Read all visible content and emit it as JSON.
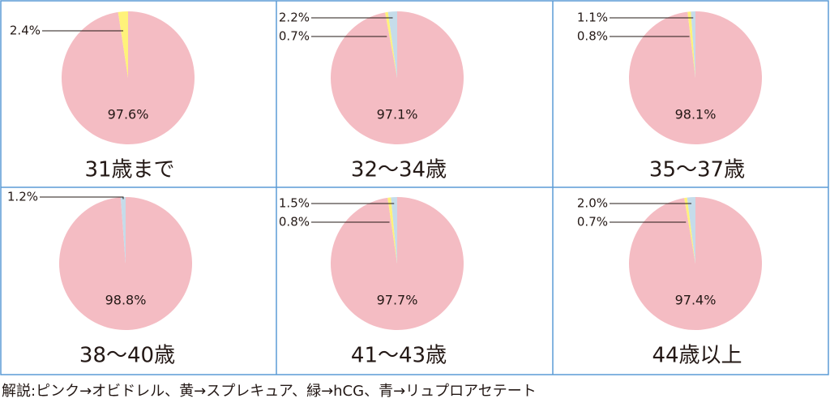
{
  "chart_data": [
    {
      "type": "pie",
      "title": "31歳まで",
      "values": [
        97.6,
        2.4
      ],
      "value_labels": [
        "97.6%",
        "2.4%"
      ],
      "colors": [
        "#f4bcc3",
        "#fff27a"
      ]
    },
    {
      "type": "pie",
      "title": "32〜34歳",
      "values": [
        97.1,
        0.7,
        2.2
      ],
      "value_labels": [
        "97.1%",
        "0.7%",
        "2.2%"
      ],
      "colors": [
        "#f4bcc3",
        "#fff27a",
        "#c5dcea"
      ]
    },
    {
      "type": "pie",
      "title": "35〜37歳",
      "values": [
        98.1,
        0.8,
        1.1
      ],
      "value_labels": [
        "98.1%",
        "0.8%",
        "1.1%"
      ],
      "colors": [
        "#f4bcc3",
        "#fff27a",
        "#c5dcea"
      ]
    },
    {
      "type": "pie",
      "title": "38〜40歳",
      "values": [
        98.8,
        1.2
      ],
      "value_labels": [
        "98.8%",
        "1.2%"
      ],
      "colors": [
        "#f4bcc3",
        "#c5dcea"
      ]
    },
    {
      "type": "pie",
      "title": "41〜43歳",
      "values": [
        97.7,
        0.8,
        1.5
      ],
      "value_labels": [
        "97.7%",
        "0.8%",
        "1.5%"
      ],
      "colors": [
        "#f4bcc3",
        "#fff27a",
        "#c5dcea"
      ]
    },
    {
      "type": "pie",
      "title": "44歳以上",
      "values": [
        97.4,
        0.7,
        2.0
      ],
      "value_labels": [
        "97.4%",
        "0.7%",
        "2.0%"
      ],
      "colors": [
        "#f4bcc3",
        "#fff27a",
        "#c5dcea"
      ]
    }
  ],
  "footnote": "解説:ピンク→オビドレル、黄→スプレキュア、緑→hCG、青→リュプロアセテート"
}
